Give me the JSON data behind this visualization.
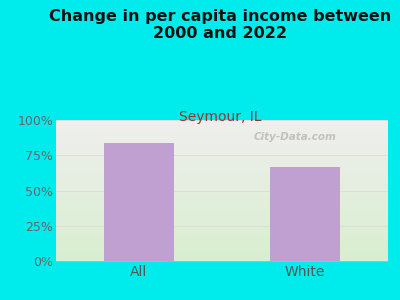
{
  "title": "Change in per capita income between\n2000 and 2022",
  "subtitle": "Seymour, IL",
  "categories": [
    "All",
    "White"
  ],
  "values": [
    84,
    67
  ],
  "bar_color": "#c0a0d0",
  "background_color": "#00ecec",
  "title_fontsize": 11.5,
  "title_color": "#111111",
  "subtitle_fontsize": 10,
  "subtitle_color": "#993333",
  "tick_label_color": "#666666",
  "xtick_label_color": "#555555",
  "ylim": [
    0,
    100
  ],
  "yticks": [
    0,
    25,
    50,
    75,
    100
  ],
  "watermark": "City-Data.com",
  "watermark_color": "#aaaaaa",
  "grid_color": "#dddddd",
  "plot_grad_top": "#f0eeee",
  "plot_grad_bottom": "#d8efd0"
}
